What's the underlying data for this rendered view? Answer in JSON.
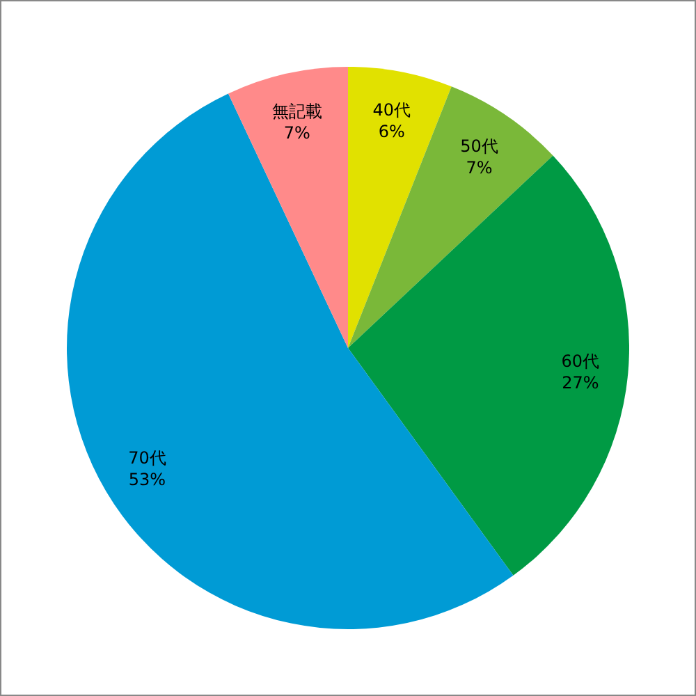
{
  "chart_data": {
    "type": "pie",
    "categories": [
      "40代",
      "50代",
      "60代",
      "70代",
      "無記載"
    ],
    "values": [
      6,
      7,
      27,
      53,
      7
    ],
    "colors": [
      "#e1e100",
      "#7ab839",
      "#009a44",
      "#009bd5",
      "#ff8a8a"
    ],
    "value_labels": [
      "6%",
      "7%",
      "27%",
      "53%",
      "7%"
    ]
  }
}
